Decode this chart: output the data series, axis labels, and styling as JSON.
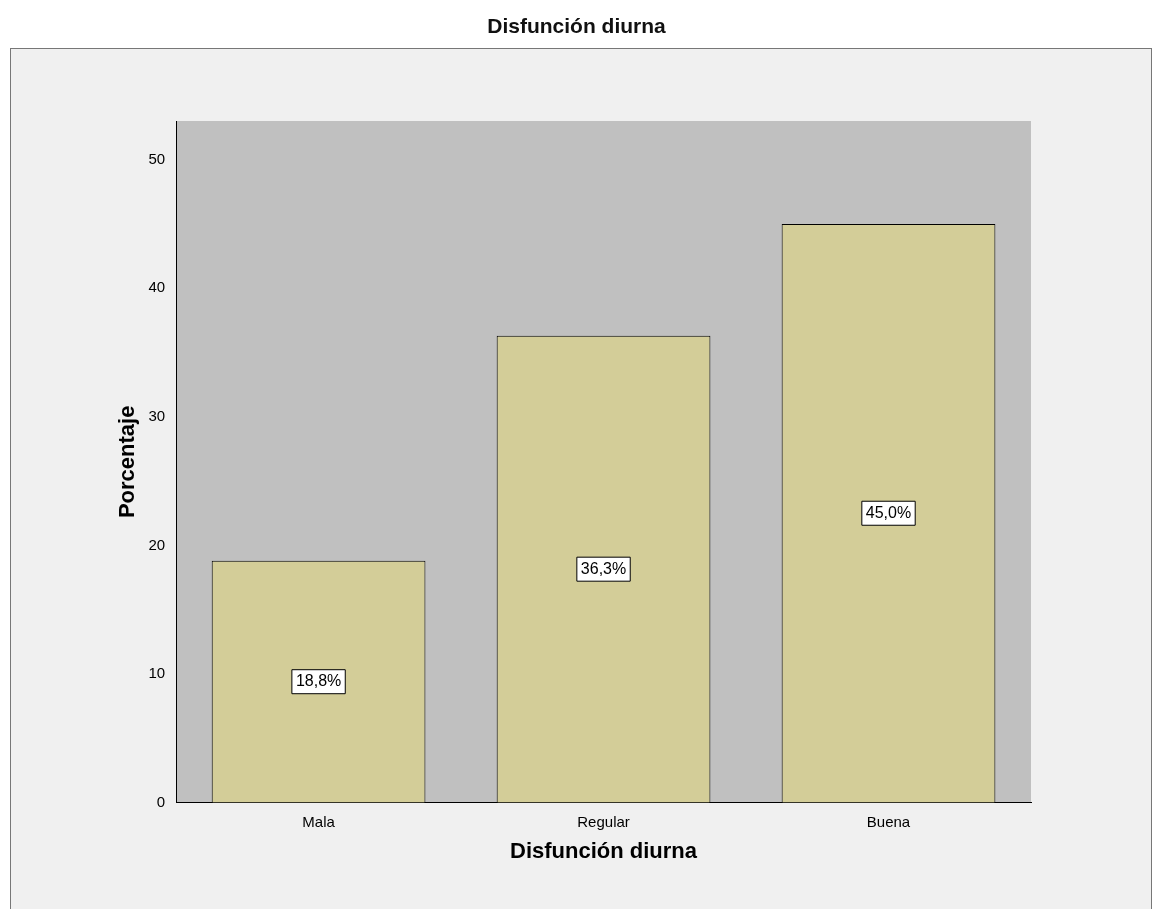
{
  "chart_data": {
    "type": "bar",
    "title": "Disfunción diurna",
    "xlabel": "Disfunción diurna",
    "ylabel": "Porcentaje",
    "categories": [
      "Mala",
      "Regular",
      "Buena"
    ],
    "values": [
      18.8,
      36.3,
      45.0
    ],
    "value_labels": [
      "18,8%",
      "36,3%",
      "45,0%"
    ],
    "color": "#d3cd98",
    "ylim": [
      0,
      53
    ],
    "yticks": [
      0,
      10,
      20,
      30,
      40,
      50
    ],
    "grid": false,
    "legend": false
  }
}
